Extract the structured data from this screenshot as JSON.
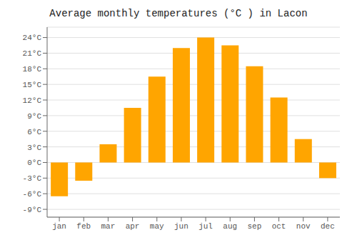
{
  "chart_data": {
    "type": "bar",
    "title": "Average monthly temperatures (°C ) in Lacon",
    "categories": [
      "jan",
      "feb",
      "mar",
      "apr",
      "may",
      "jun",
      "jul",
      "aug",
      "sep",
      "oct",
      "nov",
      "dec"
    ],
    "values": [
      -6.5,
      -3.5,
      3.5,
      10.5,
      16.5,
      22.0,
      24.0,
      22.5,
      18.5,
      12.5,
      4.5,
      -3.0
    ],
    "color": "#FFA500",
    "ylim": [
      -10.5,
      26
    ],
    "yticks": [
      {
        "value": -9,
        "label": "-9°C"
      },
      {
        "value": -6,
        "label": "-6°C"
      },
      {
        "value": -3,
        "label": "-3°C"
      },
      {
        "value": 0,
        "label": "0°C"
      },
      {
        "value": 3,
        "label": "3°C"
      },
      {
        "value": 6,
        "label": "6°C"
      },
      {
        "value": 9,
        "label": "9°C"
      },
      {
        "value": 12,
        "label": "12°C"
      },
      {
        "value": 15,
        "label": "15°C"
      },
      {
        "value": 18,
        "label": "18°C"
      },
      {
        "value": 21,
        "label": "21°C"
      },
      {
        "value": 24,
        "label": "24°C"
      }
    ],
    "grid": true
  }
}
